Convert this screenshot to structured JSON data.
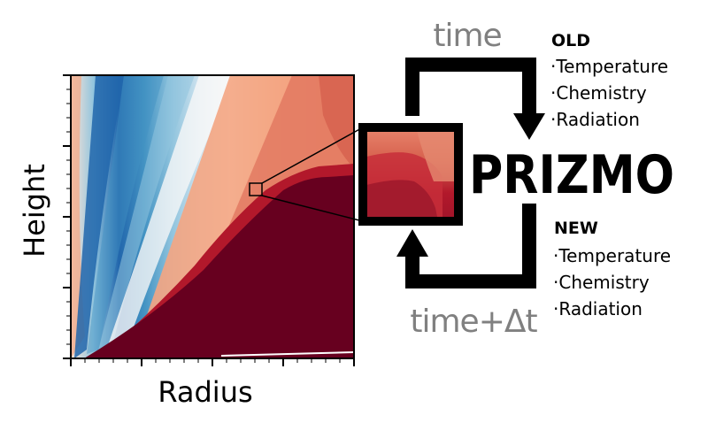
{
  "plot": {
    "x_label": "Radius",
    "y_label": "Height"
  },
  "cycle": {
    "time_top": "time",
    "time_bottom": "time+Δt"
  },
  "brand": "PRIZMO",
  "old": {
    "heading": "OLD",
    "items": [
      "·Temperature",
      "·Chemistry",
      "·Radiation"
    ]
  },
  "new": {
    "heading": "NEW",
    "items": [
      "·Temperature",
      "·Chemistry",
      "·Radiation"
    ]
  },
  "colors": {
    "blue_dark": "#2166ac",
    "blue_mid": "#4393c3",
    "blue_light": "#92c5de",
    "near_white": "#f7f7f7",
    "red_light": "#f4a582",
    "red_mid": "#d6604d",
    "red_dark": "#b2182b",
    "maroon": "#67001f"
  }
}
